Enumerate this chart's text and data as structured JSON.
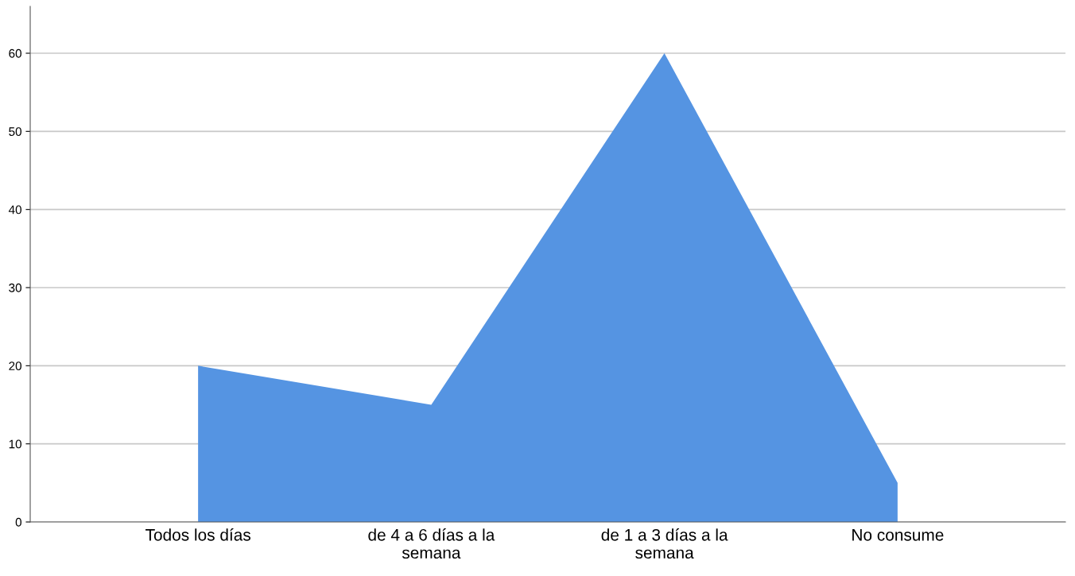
{
  "chart_data": {
    "type": "area",
    "categories": [
      "Todos los días",
      "de 4 a 6 días a la\nsemana",
      "de 1 a 3 días a la\nsemana",
      "No consume"
    ],
    "values": [
      20,
      15,
      60,
      5
    ],
    "color": "#5594e2",
    "ylim": [
      0,
      66
    ],
    "yticks": [
      0,
      10,
      20,
      30,
      40,
      50,
      60
    ],
    "grid": "y"
  }
}
